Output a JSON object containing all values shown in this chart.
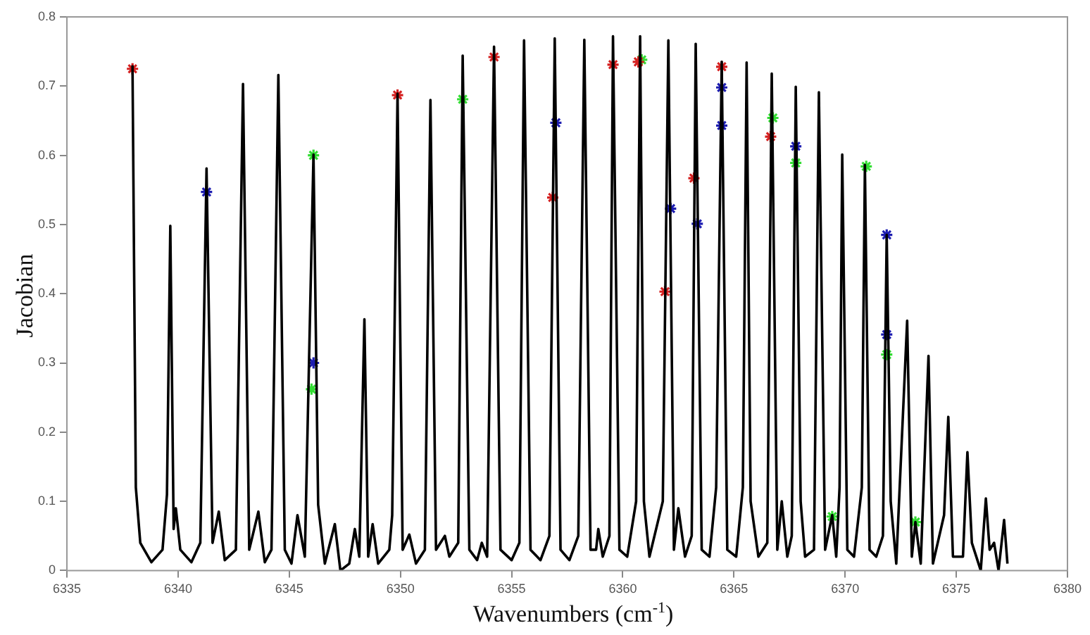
{
  "chart_data": {
    "type": "line",
    "xlabel": "Wavenumbers (cm$^{-1}$)",
    "ylabel": "Jacobian",
    "xlim": [
      6335,
      6380
    ],
    "ylim": [
      0,
      0.8
    ],
    "xticks": [
      6335,
      6340,
      6345,
      6350,
      6355,
      6360,
      6365,
      6370,
      6375,
      6380
    ],
    "yticks": [
      0,
      0.1,
      0.2,
      0.3,
      0.4,
      0.5,
      0.6,
      0.7,
      0.8
    ],
    "grid": false,
    "series": [
      {
        "type": "line",
        "color": "#000000",
        "marker": "none",
        "x": [
          6337.95,
          6338.1,
          6338.3,
          6338.8,
          6339.3,
          6339.5,
          6339.65,
          6339.8,
          6339.9,
          6340.1,
          6340.6,
          6341.0,
          6341.28,
          6341.55,
          6341.83,
          6342.1,
          6342.6,
          6342.92,
          6343.2,
          6343.61,
          6343.9,
          6344.2,
          6344.51,
          6344.8,
          6345.1,
          6345.37,
          6345.7,
          6346.09,
          6346.3,
          6346.6,
          6347.05,
          6347.3,
          6347.7,
          6347.95,
          6348.15,
          6348.38,
          6348.55,
          6348.75,
          6349.0,
          6349.5,
          6349.63,
          6349.87,
          6350.1,
          6350.4,
          6350.7,
          6351.1,
          6351.35,
          6351.6,
          6352.0,
          6352.2,
          6352.6,
          6352.8,
          6353.1,
          6353.45,
          6353.66,
          6353.9,
          6354.21,
          6354.5,
          6355.0,
          6355.35,
          6355.56,
          6355.85,
          6356.3,
          6356.7,
          6356.94,
          6357.2,
          6357.6,
          6358.0,
          6358.27,
          6358.55,
          6358.8,
          6358.9,
          6359.1,
          6359.4,
          6359.56,
          6359.85,
          6360.2,
          6360.6,
          6360.78,
          6360.95,
          6361.2,
          6361.8,
          6362.05,
          6362.3,
          6362.5,
          6362.8,
          6363.1,
          6363.28,
          6363.55,
          6363.9,
          6364.2,
          6364.45,
          6364.7,
          6365.1,
          6365.4,
          6365.57,
          6365.75,
          6366.1,
          6366.5,
          6366.7,
          6366.95,
          6367.15,
          6367.4,
          6367.6,
          6367.78,
          6368.0,
          6368.2,
          6368.6,
          6368.82,
          6369.1,
          6369.42,
          6369.6,
          6369.75,
          6369.87,
          6370.1,
          6370.4,
          6370.75,
          6370.89,
          6371.1,
          6371.4,
          6371.7,
          6371.87,
          6372.05,
          6372.3,
          6372.79,
          6373.0,
          6373.16,
          6373.4,
          6373.75,
          6373.95,
          6374.45,
          6374.64,
          6374.85,
          6375.3,
          6375.5,
          6375.7,
          6376.1,
          6376.33,
          6376.5,
          6376.7,
          6376.9,
          6377.15,
          6377.3
        ],
        "values": [
          0.73,
          0.12,
          0.04,
          0.012,
          0.03,
          0.11,
          0.498,
          0.06,
          0.09,
          0.03,
          0.012,
          0.04,
          0.581,
          0.04,
          0.085,
          0.015,
          0.03,
          0.703,
          0.03,
          0.085,
          0.012,
          0.03,
          0.716,
          0.03,
          0.01,
          0.08,
          0.02,
          0.601,
          0.095,
          0.01,
          0.067,
          0.0,
          0.01,
          0.06,
          0.02,
          0.363,
          0.02,
          0.067,
          0.01,
          0.03,
          0.08,
          0.689,
          0.03,
          0.052,
          0.01,
          0.03,
          0.68,
          0.03,
          0.05,
          0.02,
          0.04,
          0.744,
          0.03,
          0.015,
          0.04,
          0.02,
          0.757,
          0.03,
          0.015,
          0.04,
          0.766,
          0.03,
          0.015,
          0.05,
          0.769,
          0.03,
          0.015,
          0.05,
          0.767,
          0.03,
          0.03,
          0.06,
          0.02,
          0.05,
          0.772,
          0.03,
          0.02,
          0.1,
          0.772,
          0.1,
          0.02,
          0.1,
          0.766,
          0.03,
          0.09,
          0.02,
          0.05,
          0.761,
          0.03,
          0.02,
          0.12,
          0.735,
          0.03,
          0.02,
          0.12,
          0.734,
          0.1,
          0.02,
          0.04,
          0.718,
          0.03,
          0.1,
          0.02,
          0.05,
          0.699,
          0.1,
          0.02,
          0.03,
          0.691,
          0.03,
          0.08,
          0.02,
          0.12,
          0.601,
          0.03,
          0.02,
          0.12,
          0.586,
          0.03,
          0.02,
          0.05,
          0.485,
          0.1,
          0.01,
          0.361,
          0.02,
          0.07,
          0.01,
          0.31,
          0.01,
          0.08,
          0.222,
          0.02,
          0.02,
          0.171,
          0.04,
          0.0,
          0.104,
          0.03,
          0.04,
          0.0,
          0.073,
          0.01
        ]
      },
      {
        "type": "scatter",
        "color": "#d42020",
        "marker": "cross",
        "x": [
          6337.95,
          6349.87,
          6354.21,
          6356.85,
          6359.56,
          6360.7,
          6361.9,
          6363.2,
          6364.45,
          6366.65
        ],
        "values": [
          0.725,
          0.687,
          0.742,
          0.539,
          0.731,
          0.735,
          0.403,
          0.567,
          0.728,
          0.627
        ]
      },
      {
        "type": "scatter",
        "color": "#1c1cb0",
        "marker": "cross",
        "x": [
          6341.28,
          6346.09,
          6356.99,
          6362.15,
          6363.35,
          6364.45,
          6364.45,
          6367.78,
          6371.87,
          6371.87
        ],
        "values": [
          0.547,
          0.3,
          0.647,
          0.523,
          0.501,
          0.698,
          0.643,
          0.613,
          0.485,
          0.341
        ]
      },
      {
        "type": "scatter",
        "color": "#33dd33",
        "marker": "cross",
        "x": [
          6346.09,
          6346.0,
          6352.8,
          6360.85,
          6366.75,
          6367.78,
          6369.42,
          6370.95,
          6371.87,
          6373.16
        ],
        "values": [
          0.6,
          0.262,
          0.681,
          0.738,
          0.654,
          0.589,
          0.078,
          0.584,
          0.312,
          0.07
        ]
      }
    ]
  }
}
